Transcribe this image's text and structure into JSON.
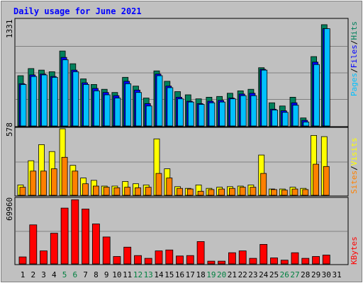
{
  "chart_data": [
    {
      "type": "bar",
      "title": "Daily usage for June 2021",
      "categories": [
        "1",
        "2",
        "3",
        "4",
        "5",
        "6",
        "7",
        "8",
        "9",
        "10",
        "11",
        "12",
        "13",
        "14",
        "15",
        "16",
        "17",
        "18",
        "19",
        "20",
        "21",
        "22",
        "23",
        "24",
        "25",
        "26",
        "27",
        "28",
        "29",
        "30",
        "31"
      ],
      "weekend_days": [
        "5",
        "6",
        "12",
        "13",
        "19",
        "20",
        "26",
        "27"
      ],
      "ymax_label": "1331",
      "ylim": [
        0,
        1331
      ],
      "series": [
        {
          "name": "Hits",
          "color": "#00805c",
          "values": [
            630,
            720,
            700,
            680,
            940,
            780,
            590,
            520,
            460,
            420,
            610,
            500,
            350,
            690,
            560,
            430,
            390,
            340,
            360,
            370,
            410,
            440,
            460,
            730,
            290,
            250,
            360,
            100,
            870,
            1270,
            0
          ]
        },
        {
          "name": "Files",
          "color": "#0000ff",
          "values": [
            530,
            640,
            650,
            620,
            860,
            700,
            540,
            470,
            420,
            380,
            560,
            450,
            280,
            650,
            500,
            360,
            310,
            280,
            310,
            320,
            350,
            400,
            410,
            710,
            210,
            190,
            290,
            70,
            800,
            1220,
            0
          ]
        },
        {
          "name": "Pages",
          "color": "#00c0ff",
          "values": [
            520,
            620,
            640,
            610,
            830,
            680,
            520,
            440,
            390,
            350,
            530,
            420,
            250,
            630,
            480,
            340,
            300,
            270,
            290,
            300,
            340,
            380,
            380,
            700,
            200,
            170,
            260,
            50,
            770,
            1220,
            0
          ]
        }
      ]
    },
    {
      "type": "bar",
      "ymax_label": "578",
      "ylim": [
        0,
        578
      ],
      "series": [
        {
          "name": "Visits",
          "color": "#ffff00",
          "values": [
            90,
            300,
            440,
            380,
            578,
            260,
            150,
            130,
            80,
            80,
            120,
            100,
            90,
            490,
            230,
            75,
            60,
            90,
            60,
            70,
            75,
            80,
            90,
            350,
            55,
            55,
            70,
            60,
            520,
            510,
            0
          ]
        },
        {
          "name": "Sites",
          "color": "#ff8000",
          "values": [
            70,
            210,
            210,
            230,
            330,
            210,
            100,
            80,
            70,
            65,
            70,
            65,
            70,
            190,
            150,
            60,
            55,
            35,
            50,
            55,
            60,
            70,
            70,
            190,
            50,
            45,
            55,
            50,
            270,
            250,
            0
          ]
        }
      ]
    },
    {
      "type": "bar",
      "ymax_label": "69960",
      "ylim": [
        0,
        69960
      ],
      "series": [
        {
          "name": "KBytes",
          "color": "#ff0000",
          "values": [
            7500,
            42000,
            14000,
            33000,
            60000,
            69000,
            59000,
            43000,
            29000,
            8000,
            18000,
            9000,
            6000,
            14000,
            15000,
            8500,
            9000,
            24000,
            3000,
            3000,
            12000,
            14000,
            6000,
            21000,
            6500,
            4000,
            12000,
            6000,
            8000,
            9500,
            0
          ]
        }
      ]
    }
  ],
  "legend": {
    "top": [
      {
        "text": "Pages",
        "color": "#00c0ff"
      },
      {
        "text": "/",
        "color": "#000000"
      },
      {
        "text": "Files",
        "color": "#0000ff"
      },
      {
        "text": "/",
        "color": "#000000"
      },
      {
        "text": "Hits",
        "color": "#00805c"
      }
    ],
    "middle": [
      {
        "text": "Sites",
        "color": "#ff8000"
      },
      {
        "text": "/",
        "color": "#000000"
      },
      {
        "text": "Visits",
        "color": "#ffff00"
      }
    ],
    "bottom": [
      {
        "text": "KBytes",
        "color": "#ff0000"
      }
    ]
  },
  "colors": {
    "background": "#c0c0c0",
    "title": "#0000ff",
    "weekend_label": "#008040",
    "weekday_label": "#000000"
  }
}
